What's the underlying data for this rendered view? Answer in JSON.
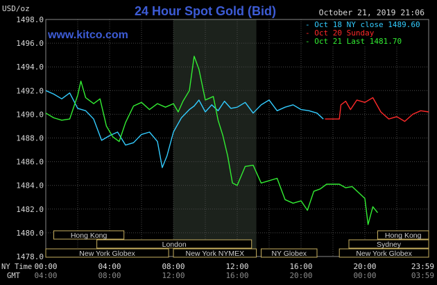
{
  "chart_data": {
    "type": "line",
    "title": "24 Hour Spot Gold (Bid)",
    "unit": "USD/oz",
    "timestamp": "October 21, 2019 21:06",
    "website": "www.kitco.com",
    "ylim": [
      1478.0,
      1498.0
    ],
    "y_ticks": [
      "1498.0",
      "1496.0",
      "1494.0",
      "1492.0",
      "1490.0",
      "1488.0",
      "1486.0",
      "1484.0",
      "1482.0",
      "1480.0",
      "1478.0"
    ],
    "x_axis": {
      "row1_label": "NY Time",
      "row2_label": "GMT",
      "ny_ticks": [
        "00:00",
        "04:00",
        "08:00",
        "12:00",
        "16:00",
        "20:00",
        "23:59"
      ],
      "gmt_ticks": [
        "04:00",
        "08:00",
        "12:00",
        "16:00",
        "20:00",
        "00:00",
        "03:59"
      ]
    },
    "series": [
      {
        "name": "Oct 18 NY close 1489.60",
        "color": "#33ccff",
        "points": [
          [
            0,
            1492.0
          ],
          [
            0.5,
            1491.7
          ],
          [
            1,
            1491.3
          ],
          [
            1.5,
            1491.8
          ],
          [
            2,
            1490.5
          ],
          [
            2.5,
            1490.3
          ],
          [
            3,
            1489.6
          ],
          [
            3.5,
            1487.8
          ],
          [
            4,
            1488.2
          ],
          [
            4.5,
            1488.5
          ],
          [
            5,
            1487.4
          ],
          [
            5.5,
            1487.6
          ],
          [
            6,
            1488.3
          ],
          [
            6.5,
            1488.5
          ],
          [
            7,
            1487.7
          ],
          [
            7.3,
            1485.5
          ],
          [
            7.6,
            1486.5
          ],
          [
            8,
            1488.5
          ],
          [
            8.5,
            1489.7
          ],
          [
            9,
            1490.4
          ],
          [
            9.3,
            1490.7
          ],
          [
            9.6,
            1491.2
          ],
          [
            10,
            1490.2
          ],
          [
            10.4,
            1490.8
          ],
          [
            10.8,
            1490.3
          ],
          [
            11.2,
            1491.1
          ],
          [
            11.6,
            1490.5
          ],
          [
            12,
            1490.6
          ],
          [
            12.5,
            1491.0
          ],
          [
            13,
            1490.1
          ],
          [
            13.5,
            1490.8
          ],
          [
            14,
            1491.2
          ],
          [
            14.5,
            1490.3
          ],
          [
            15,
            1490.6
          ],
          [
            15.5,
            1490.8
          ],
          [
            16,
            1490.4
          ],
          [
            16.5,
            1490.3
          ],
          [
            17,
            1490.1
          ],
          [
            17.4,
            1489.6
          ]
        ]
      },
      {
        "name": "Oct 20 Sunday",
        "color": "#ff2a2a",
        "points": [
          [
            17.5,
            1489.6
          ],
          [
            18.4,
            1489.6
          ],
          [
            18.5,
            1490.8
          ],
          [
            18.8,
            1491.1
          ],
          [
            19.1,
            1490.4
          ],
          [
            19.5,
            1491.2
          ],
          [
            20,
            1491.0
          ],
          [
            20.5,
            1491.4
          ],
          [
            21,
            1490.2
          ],
          [
            21.5,
            1489.6
          ],
          [
            22,
            1489.8
          ],
          [
            22.5,
            1489.4
          ],
          [
            23,
            1490.0
          ],
          [
            23.5,
            1490.3
          ],
          [
            24,
            1490.2
          ]
        ]
      },
      {
        "name": "Oct 21 Last 1481.70",
        "color": "#33ee33",
        "points": [
          [
            0,
            1490.1
          ],
          [
            0.5,
            1489.7
          ],
          [
            1,
            1489.5
          ],
          [
            1.5,
            1489.6
          ],
          [
            2,
            1491.6
          ],
          [
            2.2,
            1492.8
          ],
          [
            2.5,
            1491.4
          ],
          [
            3,
            1490.9
          ],
          [
            3.4,
            1491.3
          ],
          [
            3.8,
            1489.0
          ],
          [
            4.2,
            1488.1
          ],
          [
            4.6,
            1487.7
          ],
          [
            5,
            1489.3
          ],
          [
            5.5,
            1490.7
          ],
          [
            6,
            1491.0
          ],
          [
            6.5,
            1490.4
          ],
          [
            7,
            1490.9
          ],
          [
            7.5,
            1490.6
          ],
          [
            8,
            1490.9
          ],
          [
            8.3,
            1490.2
          ],
          [
            8.6,
            1491.1
          ],
          [
            9,
            1492.0
          ],
          [
            9.3,
            1494.9
          ],
          [
            9.6,
            1493.8
          ],
          [
            10,
            1491.2
          ],
          [
            10.5,
            1491.5
          ],
          [
            10.8,
            1489.5
          ],
          [
            11.1,
            1488.2
          ],
          [
            11.4,
            1486.5
          ],
          [
            11.7,
            1484.2
          ],
          [
            12,
            1484.0
          ],
          [
            12.5,
            1485.6
          ],
          [
            13,
            1485.7
          ],
          [
            13.5,
            1484.2
          ],
          [
            14,
            1484.4
          ],
          [
            14.5,
            1484.6
          ],
          [
            15,
            1482.8
          ],
          [
            15.5,
            1482.5
          ],
          [
            16,
            1482.7
          ],
          [
            16.4,
            1481.9
          ],
          [
            16.8,
            1483.5
          ],
          [
            17.2,
            1483.7
          ],
          [
            17.6,
            1484.1
          ],
          [
            18.4,
            1484.1
          ],
          [
            18.8,
            1483.8
          ],
          [
            19.2,
            1483.9
          ],
          [
            19.6,
            1483.4
          ],
          [
            20,
            1482.9
          ],
          [
            20.2,
            1480.7
          ],
          [
            20.5,
            1482.2
          ],
          [
            20.8,
            1481.7
          ]
        ]
      }
    ],
    "sessions": [
      {
        "name": "Hong Kong",
        "row": 0,
        "start": 0.5,
        "end": 4.9
      },
      {
        "name": "Hong Kong",
        "row": 0,
        "start": 20.8,
        "end": 24
      },
      {
        "name": "London",
        "row": 1,
        "start": 3.2,
        "end": 12.9
      },
      {
        "name": "Sydney",
        "row": 1,
        "start": 19.0,
        "end": 24
      },
      {
        "name": "New York Globex",
        "row": 2,
        "start": 0,
        "end": 7.7
      },
      {
        "name": "New York NYMEX",
        "row": 2,
        "start": 8.0,
        "end": 13.2
      },
      {
        "name": "NY Globex",
        "row": 2,
        "start": 13.5,
        "end": 17.0
      },
      {
        "name": "New York Globex",
        "row": 2,
        "start": 18.4,
        "end": 24
      }
    ],
    "highlight": {
      "start": 8.0,
      "end": 13.2
    },
    "grid": true
  }
}
